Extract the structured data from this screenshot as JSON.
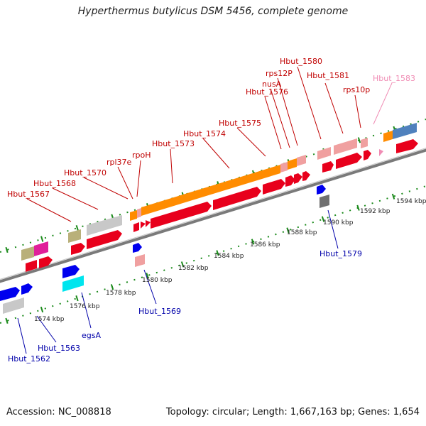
{
  "title": "Hyperthermus butylicus DSM 5456, complete genome",
  "footer": {
    "accession": "Accession: NC_008818",
    "topology": "Topology: circular; Length: 1,667,163 bp; Genes: 1,654"
  },
  "colors": {
    "backbone": "#7a7a7a",
    "tick": "#1a8a1a",
    "label_top": "#c00000",
    "label_bottom": "#0000aa",
    "label_pink": "#f08cb4",
    "scale_text": "#222222"
  },
  "scale_ticks": [
    "1574 kbp",
    "1576 kbp",
    "1578 kbp",
    "1580 kbp",
    "1582 kbp",
    "1584 kbp",
    "1586 kbp",
    "1588 kbp",
    "1590 kbp",
    "1592 kbp",
    "1594 kbp"
  ],
  "top_labels": [
    {
      "text": "Hbut_1567",
      "color": "red"
    },
    {
      "text": "Hbut_1568",
      "color": "red"
    },
    {
      "text": "Hbut_1570",
      "color": "red"
    },
    {
      "text": "rpl37e",
      "color": "red"
    },
    {
      "text": "rpoH",
      "color": "red"
    },
    {
      "text": "Hbut_1573",
      "color": "red"
    },
    {
      "text": "Hbut_1574",
      "color": "red"
    },
    {
      "text": "Hbut_1575",
      "color": "red"
    },
    {
      "text": "Hbut_1576",
      "color": "red"
    },
    {
      "text": "nusA",
      "color": "red"
    },
    {
      "text": "rps12P",
      "color": "red"
    },
    {
      "text": "Hbut_1580",
      "color": "red"
    },
    {
      "text": "Hbut_1581",
      "color": "red"
    },
    {
      "text": "rps10p",
      "color": "red"
    },
    {
      "text": "Hbut_1583",
      "color": "pink"
    }
  ],
  "bottom_labels": [
    {
      "text": "Hbut_1562"
    },
    {
      "text": "Hbut_1563"
    },
    {
      "text": "egsA"
    },
    {
      "text": "Hbut_1569"
    },
    {
      "text": "Hbut_1579"
    }
  ]
}
